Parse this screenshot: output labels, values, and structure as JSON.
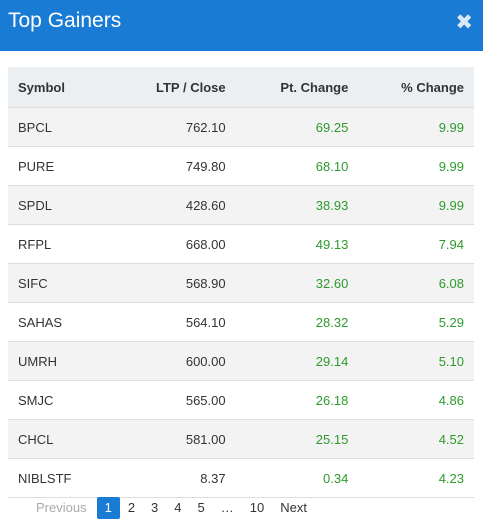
{
  "modal": {
    "title": "Top Gainers",
    "close_icon": "close-icon"
  },
  "table": {
    "headers": [
      "Symbol",
      "LTP / Close",
      "Pt. Change",
      "% Change"
    ],
    "rows": [
      {
        "symbol": "BPCL",
        "ltp": "762.10",
        "pt": "69.25",
        "pct": "9.99"
      },
      {
        "symbol": "PURE",
        "ltp": "749.80",
        "pt": "68.10",
        "pct": "9.99"
      },
      {
        "symbol": "SPDL",
        "ltp": "428.60",
        "pt": "38.93",
        "pct": "9.99"
      },
      {
        "symbol": "RFPL",
        "ltp": "668.00",
        "pt": "49.13",
        "pct": "7.94"
      },
      {
        "symbol": "SIFC",
        "ltp": "568.90",
        "pt": "32.60",
        "pct": "6.08"
      },
      {
        "symbol": "SAHAS",
        "ltp": "564.10",
        "pt": "28.32",
        "pct": "5.29"
      },
      {
        "symbol": "UMRH",
        "ltp": "600.00",
        "pt": "29.14",
        "pct": "5.10"
      },
      {
        "symbol": "SMJC",
        "ltp": "565.00",
        "pt": "26.18",
        "pct": "4.86"
      },
      {
        "symbol": "CHCL",
        "ltp": "581.00",
        "pt": "25.15",
        "pct": "4.52"
      },
      {
        "symbol": "NIBLSTF",
        "ltp": "8.37",
        "pt": "0.34",
        "pct": "4.23"
      }
    ]
  },
  "pagination": {
    "previous": "Previous",
    "pages": [
      "1",
      "2",
      "3",
      "4",
      "5"
    ],
    "ellipsis": "…",
    "last": "10",
    "next": "Next"
  },
  "colors": {
    "header": "#1a7bd4",
    "gain": "#2e9a2e"
  }
}
